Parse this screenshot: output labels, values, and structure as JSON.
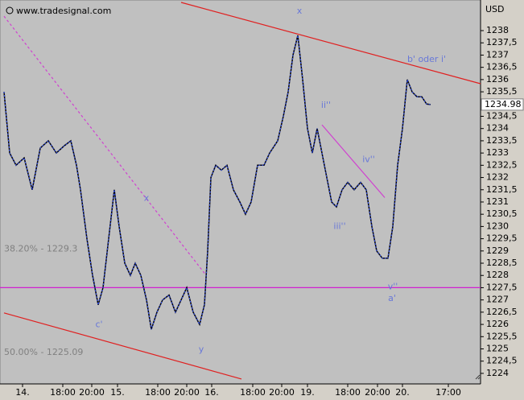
{
  "chart_data": {
    "type": "line",
    "watermark": "www.tradesignal.com",
    "currency": "USD",
    "last_price": 1234.98,
    "xlim": [
      0,
      149.25
    ],
    "ylim": [
      1223.57,
      1239.25
    ],
    "xticks": [
      {
        "value": 7,
        "label": "14."
      },
      {
        "value": 19.5,
        "label": "18:00"
      },
      {
        "value": 28.5,
        "label": "20:00"
      },
      {
        "value": 36.5,
        "label": "15."
      },
      {
        "value": 49,
        "label": "18:00"
      },
      {
        "value": 58,
        "label": "20:00"
      },
      {
        "value": 65.75,
        "label": "16."
      },
      {
        "value": 78.5,
        "label": "18:00"
      },
      {
        "value": 87.5,
        "label": "20:00"
      },
      {
        "value": 95.5,
        "label": "19."
      },
      {
        "value": 108,
        "label": "18:00"
      },
      {
        "value": 117.25,
        "label": "20:00"
      },
      {
        "value": 125,
        "label": "20."
      },
      {
        "value": 139.25,
        "label": "17:00"
      }
    ],
    "yticks": [
      1238,
      {
        "value": 1237.5,
        "label": "1237,5"
      },
      1237,
      {
        "value": 1236.5,
        "label": "1236,5"
      },
      1236,
      {
        "value": 1235.5,
        "label": "1235,5"
      },
      1235,
      {
        "value": 1234.5,
        "label": "1234,5"
      },
      1234,
      {
        "value": 1233.5,
        "label": "1233,5"
      },
      1233,
      {
        "value": 1232.5,
        "label": "1232,5"
      },
      1232,
      {
        "value": 1231.5,
        "label": "1231,5"
      },
      1231,
      {
        "value": 1230.5,
        "label": "1230,5"
      },
      1230,
      {
        "value": 1229.5,
        "label": "1229,5"
      },
      1229,
      {
        "value": 1228.5,
        "label": "1228,5"
      },
      1228,
      {
        "value": 1227.5,
        "label": "1227,5"
      },
      1227,
      {
        "value": 1226.5,
        "label": "1226,5"
      },
      1226,
      {
        "value": 1225.5,
        "label": "1225,5"
      },
      1225,
      {
        "value": 1224.5,
        "label": "1224,5"
      },
      1224
    ],
    "price": {
      "color": "#000000",
      "x": [
        1.25,
        3,
        5,
        7.5,
        10,
        12.5,
        15,
        17.5,
        20,
        22,
        23.75,
        25,
        27,
        28.75,
        30.5,
        32,
        33.75,
        35.5,
        37,
        38.75,
        40.5,
        42,
        43.75,
        45.5,
        47,
        48.75,
        50.5,
        52.5,
        54.5,
        56.25,
        58,
        60,
        62,
        63.5,
        64.5,
        65.5,
        67,
        68.75,
        70.5,
        72.5,
        74.5,
        76.25,
        78,
        80,
        82,
        83.75,
        86.25,
        88,
        89.5,
        91,
        92.5,
        94,
        95.5,
        97,
        98.5,
        100,
        101.5,
        103,
        104.5,
        106.25,
        108,
        110,
        112,
        113.75,
        115.5,
        117,
        118.75,
        120.5,
        122,
        123.5,
        125,
        126.5,
        128,
        129.5,
        131,
        132.5,
        133.75
      ],
      "values": [
        1235.5,
        1233,
        1232.5,
        1232.8,
        1231.5,
        1233.2,
        1233.5,
        1233,
        1233.3,
        1233.5,
        1232.5,
        1231.5,
        1229.5,
        1228,
        1226.8,
        1227.5,
        1229.5,
        1231.5,
        1230,
        1228.5,
        1228,
        1228.5,
        1228,
        1227,
        1225.8,
        1226.5,
        1227,
        1227.2,
        1226.5,
        1227,
        1227.5,
        1226.5,
        1226,
        1226.8,
        1229,
        1232,
        1232.5,
        1232.3,
        1232.5,
        1231.5,
        1231,
        1230.5,
        1231,
        1232.5,
        1232.5,
        1233,
        1233.5,
        1234.5,
        1235.5,
        1237,
        1237.8,
        1236,
        1234,
        1233,
        1234,
        1233,
        1232,
        1231,
        1230.8,
        1231.5,
        1231.8,
        1231.5,
        1231.8,
        1231.5,
        1230,
        1229,
        1228.7,
        1228.7,
        1230,
        1232.5,
        1234,
        1236,
        1235.5,
        1235.3,
        1235.3,
        1235,
        1234.98
      ]
    },
    "lines": [
      {
        "color": "#e02020",
        "dash": false,
        "x": [
          56.25,
          149.25
        ],
        "values": [
          1239.15,
          1235.83
        ]
      },
      {
        "color": "#e02020",
        "dash": false,
        "x": [
          1.25,
          75
        ],
        "values": [
          1226.47,
          1223.77
        ]
      },
      {
        "color": "#d040d0",
        "dash": true,
        "x": [
          1.25,
          63.75
        ],
        "values": [
          1238.59,
          1228.05
        ]
      },
      {
        "color": "#d040d0",
        "dash": false,
        "x": [
          100,
          119.5
        ],
        "values": [
          1234.15,
          1231.18
        ]
      },
      {
        "color": "#d020d0",
        "dash": false,
        "x": [
          0,
          149.25
        ],
        "values": [
          1227.5,
          1227.5
        ]
      }
    ],
    "wave_labels": [
      {
        "text": "x",
        "x": 93,
        "y": 1238.79
      },
      {
        "text": "x",
        "x": 45.5,
        "y": 1231.15
      },
      {
        "text": "b' oder i'",
        "x": 132.5,
        "y": 1236.81
      },
      {
        "text": "ii''",
        "x": 101.25,
        "y": 1234.94
      },
      {
        "text": "iv''",
        "x": 114.5,
        "y": 1232.73
      },
      {
        "text": "iii''",
        "x": 105.5,
        "y": 1230.0
      },
      {
        "text": "v''",
        "x": 122,
        "y": 1227.53
      },
      {
        "text": "a'",
        "x": 121.75,
        "y": 1227.06
      },
      {
        "text": "c'",
        "x": 30.75,
        "y": 1225.98
      },
      {
        "text": "y",
        "x": 62.5,
        "y": 1224.96
      }
    ],
    "fib_labels": [
      {
        "text": "38.20% - 1229.3",
        "x": 1.25,
        "y": 1229.07
      },
      {
        "text": "50.00% - 1225.09",
        "x": 1.25,
        "y": 1224.86
      }
    ]
  }
}
